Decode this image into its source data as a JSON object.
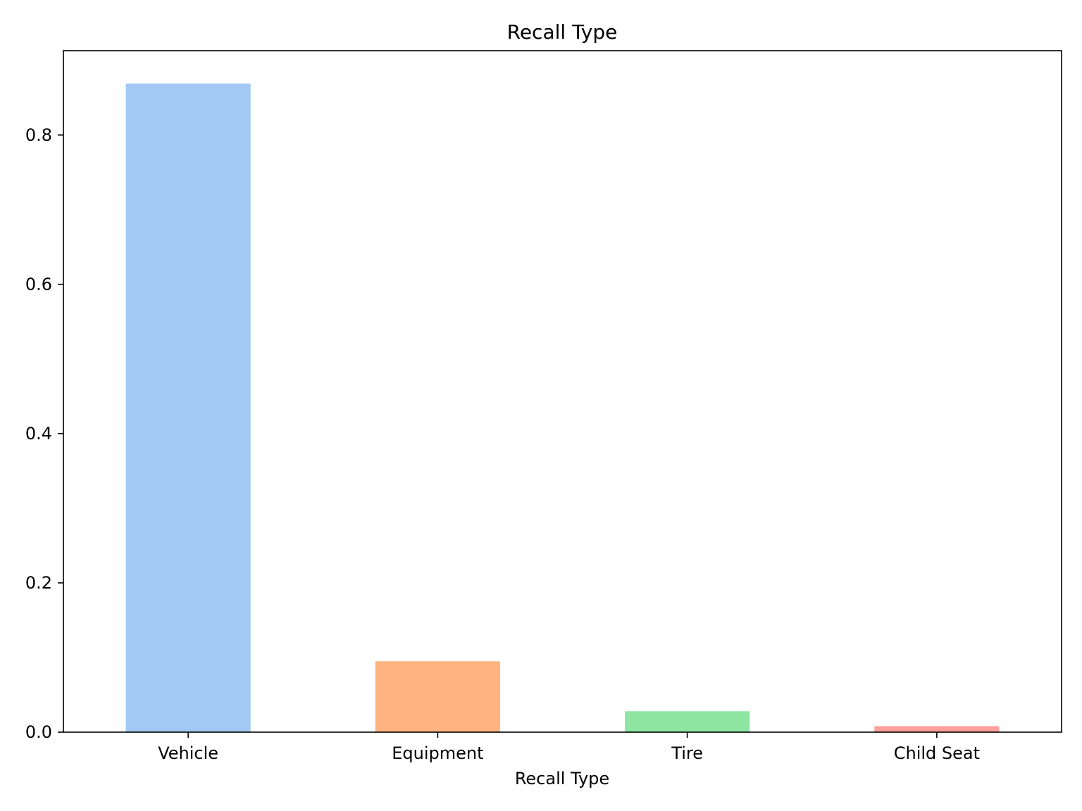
{
  "chart_data": {
    "type": "bar",
    "title": "Recall Type",
    "xlabel": "Recall Type",
    "ylabel": "",
    "categories": [
      "Vehicle",
      "Equipment",
      "Tire",
      "Child Seat"
    ],
    "values": [
      0.869,
      0.095,
      0.028,
      0.008
    ],
    "colors": [
      "#a1c9f4",
      "#ffb482",
      "#8de5a1",
      "#ff9f9b"
    ],
    "ylim": [
      0,
      0.913
    ],
    "yticks": [
      0.0,
      0.2,
      0.4,
      0.6,
      0.8
    ],
    "ytick_labels": [
      "0.0",
      "0.2",
      "0.4",
      "0.6",
      "0.8"
    ],
    "grid": false,
    "legend": "none"
  }
}
